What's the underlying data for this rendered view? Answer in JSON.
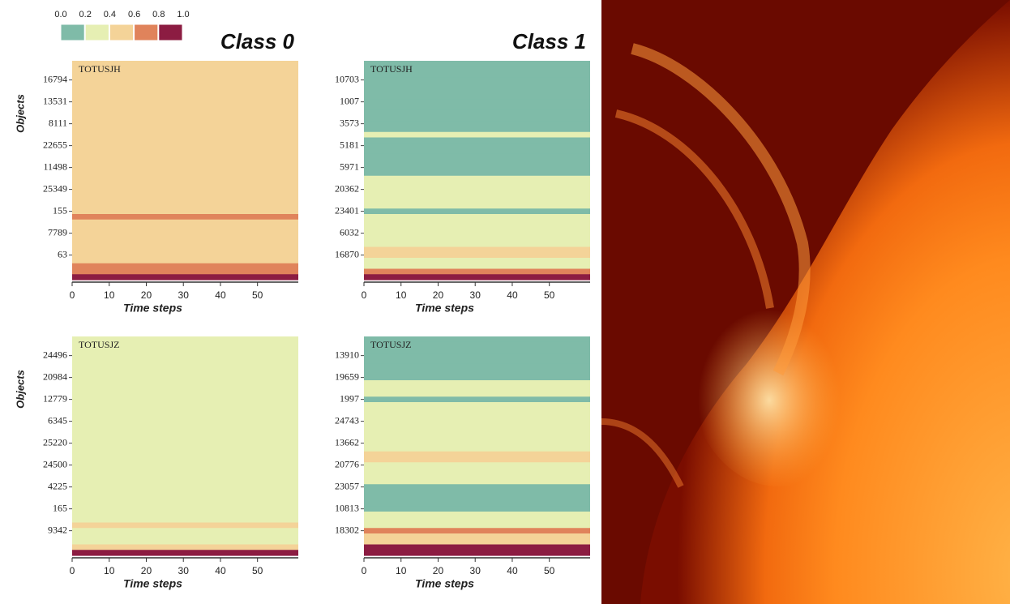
{
  "colorbar": {
    "ticks": [
      {
        "value": 0,
        "label": "0.0"
      },
      0.2,
      0.4,
      0.6,
      0.8,
      {
        "value": 1,
        "label": "1.0"
      }
    ],
    "colors": [
      "#7fbba8",
      "#e6efb3",
      "#f4d398",
      "#e0835b",
      "#8c1c42"
    ]
  },
  "chart_data": [
    {
      "type": "heatmap",
      "title": "Class 0",
      "label": "TOTUSJH",
      "ylabel": "Objects",
      "xlabel": "Time steps",
      "categories": [
        null,
        null,
        null,
        "16794",
        null,
        null,
        null,
        "13531",
        null,
        null,
        null,
        "8111",
        null,
        null,
        null,
        "22655",
        null,
        null,
        null,
        "11498",
        null,
        null,
        null,
        "25349",
        null,
        null,
        null,
        "155",
        null,
        null,
        null,
        "7789",
        null,
        null,
        null,
        "63",
        null,
        null,
        null,
        null
      ],
      "values": [
        0.5,
        0.5,
        0.5,
        0.5,
        0.5,
        0.5,
        0.5,
        0.5,
        0.5,
        0.5,
        0.5,
        0.5,
        0.5,
        0.5,
        0.5,
        0.5,
        0.5,
        0.5,
        0.5,
        0.5,
        0.5,
        0.5,
        0.5,
        0.5,
        0.5,
        0.5,
        0.5,
        0.5,
        0.6,
        0.5,
        0.5,
        0.5,
        0.5,
        0.5,
        0.5,
        0.5,
        0.5,
        0.7,
        0.7,
        0.9
      ],
      "xlim": [
        0,
        61
      ],
      "xticks": [
        0,
        10,
        20,
        30,
        40,
        50
      ]
    },
    {
      "type": "heatmap",
      "title": "Class 1",
      "label": "TOTUSJH",
      "xlabel": "Time steps",
      "categories": [
        null,
        null,
        null,
        "10703",
        null,
        null,
        null,
        "1007",
        null,
        null,
        null,
        "3573",
        null,
        null,
        null,
        "5181",
        null,
        null,
        null,
        "5971",
        null,
        null,
        null,
        "20362",
        null,
        null,
        null,
        "23401",
        null,
        null,
        null,
        "6032",
        null,
        null,
        null,
        "16870",
        null,
        null,
        null,
        null
      ],
      "values": [
        0.1,
        0.1,
        0.1,
        0.1,
        0.1,
        0.1,
        0.1,
        0.1,
        0.1,
        0.1,
        0.1,
        0.1,
        0.1,
        0.3,
        0.1,
        0.1,
        0.1,
        0.1,
        0.1,
        0.1,
        0.1,
        0.3,
        0.3,
        0.3,
        0.3,
        0.3,
        0.3,
        0.1,
        0.3,
        0.3,
        0.3,
        0.3,
        0.3,
        0.3,
        0.5,
        0.5,
        0.3,
        0.3,
        0.7,
        0.9
      ],
      "xlim": [
        0,
        61
      ],
      "xticks": [
        0,
        10,
        20,
        30,
        40,
        50
      ]
    },
    {
      "type": "heatmap",
      "label": "TOTUSJZ",
      "ylabel": "Objects",
      "xlabel": "Time steps",
      "categories": [
        null,
        null,
        null,
        "24496",
        null,
        null,
        null,
        "20984",
        null,
        null,
        null,
        "12779",
        null,
        null,
        null,
        "6345",
        null,
        null,
        null,
        "25220",
        null,
        null,
        null,
        "24500",
        null,
        null,
        null,
        "4225",
        null,
        null,
        null,
        "165",
        null,
        null,
        null,
        "9342",
        null,
        null,
        null,
        null
      ],
      "values": [
        0.3,
        0.3,
        0.3,
        0.3,
        0.3,
        0.3,
        0.3,
        0.3,
        0.3,
        0.3,
        0.3,
        0.3,
        0.3,
        0.3,
        0.3,
        0.3,
        0.3,
        0.3,
        0.3,
        0.3,
        0.3,
        0.3,
        0.3,
        0.3,
        0.3,
        0.3,
        0.3,
        0.3,
        0.3,
        0.3,
        0.3,
        0.3,
        0.3,
        0.3,
        0.5,
        0.3,
        0.3,
        0.3,
        0.5,
        0.9
      ],
      "xlim": [
        0,
        61
      ],
      "xticks": [
        0,
        10,
        20,
        30,
        40,
        50
      ]
    },
    {
      "type": "heatmap",
      "label": "TOTUSJZ",
      "xlabel": "Time steps",
      "categories": [
        null,
        null,
        null,
        "13910",
        null,
        null,
        null,
        "19659",
        null,
        null,
        null,
        "1997",
        null,
        null,
        null,
        "24743",
        null,
        null,
        null,
        "13662",
        null,
        null,
        null,
        "20776",
        null,
        null,
        null,
        "23057",
        null,
        null,
        null,
        "10813",
        null,
        null,
        null,
        "18302",
        null,
        null,
        null,
        null
      ],
      "values": [
        0.1,
        0.1,
        0.1,
        0.1,
        0.1,
        0.1,
        0.1,
        0.1,
        0.3,
        0.3,
        0.3,
        0.1,
        0.3,
        0.3,
        0.3,
        0.3,
        0.3,
        0.3,
        0.3,
        0.3,
        0.3,
        0.5,
        0.5,
        0.3,
        0.3,
        0.3,
        0.3,
        0.1,
        0.1,
        0.1,
        0.1,
        0.1,
        0.3,
        0.3,
        0.3,
        0.7,
        0.5,
        0.5,
        0.9,
        0.9
      ],
      "xlim": [
        0,
        61
      ],
      "xticks": [
        0,
        10,
        20,
        30,
        40,
        50
      ]
    }
  ]
}
